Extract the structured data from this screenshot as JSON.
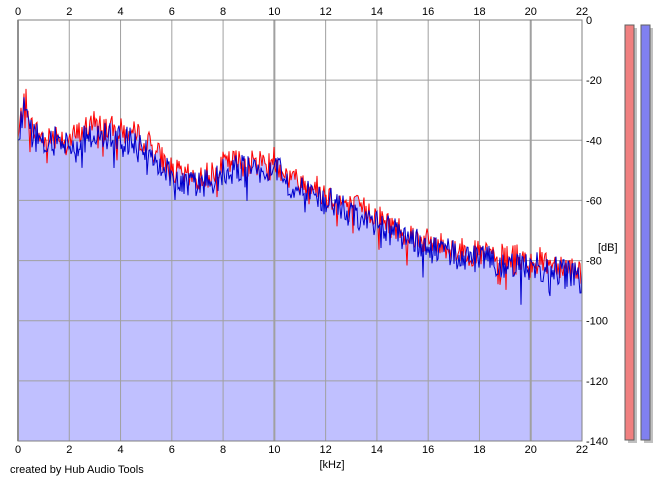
{
  "chart_data": {
    "type": "area",
    "x_unit": "[kHz]",
    "y_unit": "[dB]",
    "xlim": [
      0,
      22
    ],
    "ylim": [
      -140,
      0
    ],
    "x_ticks": [
      0,
      2,
      4,
      6,
      8,
      10,
      12,
      14,
      16,
      18,
      20,
      22
    ],
    "y_ticks": [
      0,
      -20,
      -40,
      -60,
      -80,
      -100,
      -120,
      -140
    ],
    "grid": true,
    "fill_color": "#c0c0ff",
    "series": [
      {
        "color": "#ff0000",
        "x": [
          0,
          0.25,
          0.5,
          1,
          1.5,
          2,
          2.5,
          3,
          3.5,
          4,
          4.5,
          5,
          5.5,
          6,
          6.5,
          7,
          7.5,
          8,
          8.5,
          9,
          9.5,
          10,
          10.5,
          11,
          11.5,
          12,
          12.5,
          13,
          13.5,
          14,
          14.5,
          15,
          15.5,
          16,
          16.5,
          17,
          17.5,
          18,
          18.5,
          19,
          19.5,
          20,
          20.5,
          21,
          21.5,
          22
        ],
        "values": [
          -40,
          -24,
          -35,
          -40,
          -38,
          -40,
          -37,
          -34,
          -36,
          -37,
          -38,
          -40,
          -45,
          -50,
          -52,
          -53,
          -51,
          -48,
          -47,
          -48,
          -47,
          -46,
          -52,
          -54,
          -55,
          -58,
          -60,
          -62,
          -63,
          -65,
          -68,
          -70,
          -72,
          -74,
          -75,
          -76,
          -77,
          -78,
          -78,
          -79,
          -79,
          -80,
          -80,
          -81,
          -82,
          -84
        ]
      },
      {
        "color": "#0000cc",
        "x": [
          0,
          0.25,
          0.5,
          1,
          1.5,
          2,
          2.5,
          3,
          3.5,
          4,
          4.5,
          5,
          5.5,
          6,
          6.5,
          7,
          7.5,
          8,
          8.5,
          9,
          9.5,
          10,
          10.5,
          11,
          11.5,
          12,
          12.5,
          13,
          13.5,
          14,
          14.5,
          15,
          15.5,
          16,
          16.5,
          17,
          17.5,
          18,
          18.5,
          19,
          19.5,
          20,
          20.5,
          21,
          21.5,
          22
        ],
        "values": [
          -42,
          -26,
          -37,
          -42,
          -40,
          -41,
          -40,
          -38,
          -39,
          -40,
          -41,
          -43,
          -47,
          -52,
          -54,
          -55,
          -53,
          -50,
          -49,
          -50,
          -49,
          -48,
          -54,
          -56,
          -58,
          -60,
          -62,
          -64,
          -66,
          -68,
          -70,
          -72,
          -74,
          -76,
          -77,
          -78,
          -79,
          -80,
          -80,
          -81,
          -81,
          -82,
          -82,
          -83,
          -84,
          -87
        ]
      }
    ],
    "credit": "created by Hub Audio Tools",
    "level_meters": [
      {
        "color": "#f08080",
        "level": 1.0
      },
      {
        "color": "#8080f0",
        "level": 1.0
      }
    ]
  }
}
